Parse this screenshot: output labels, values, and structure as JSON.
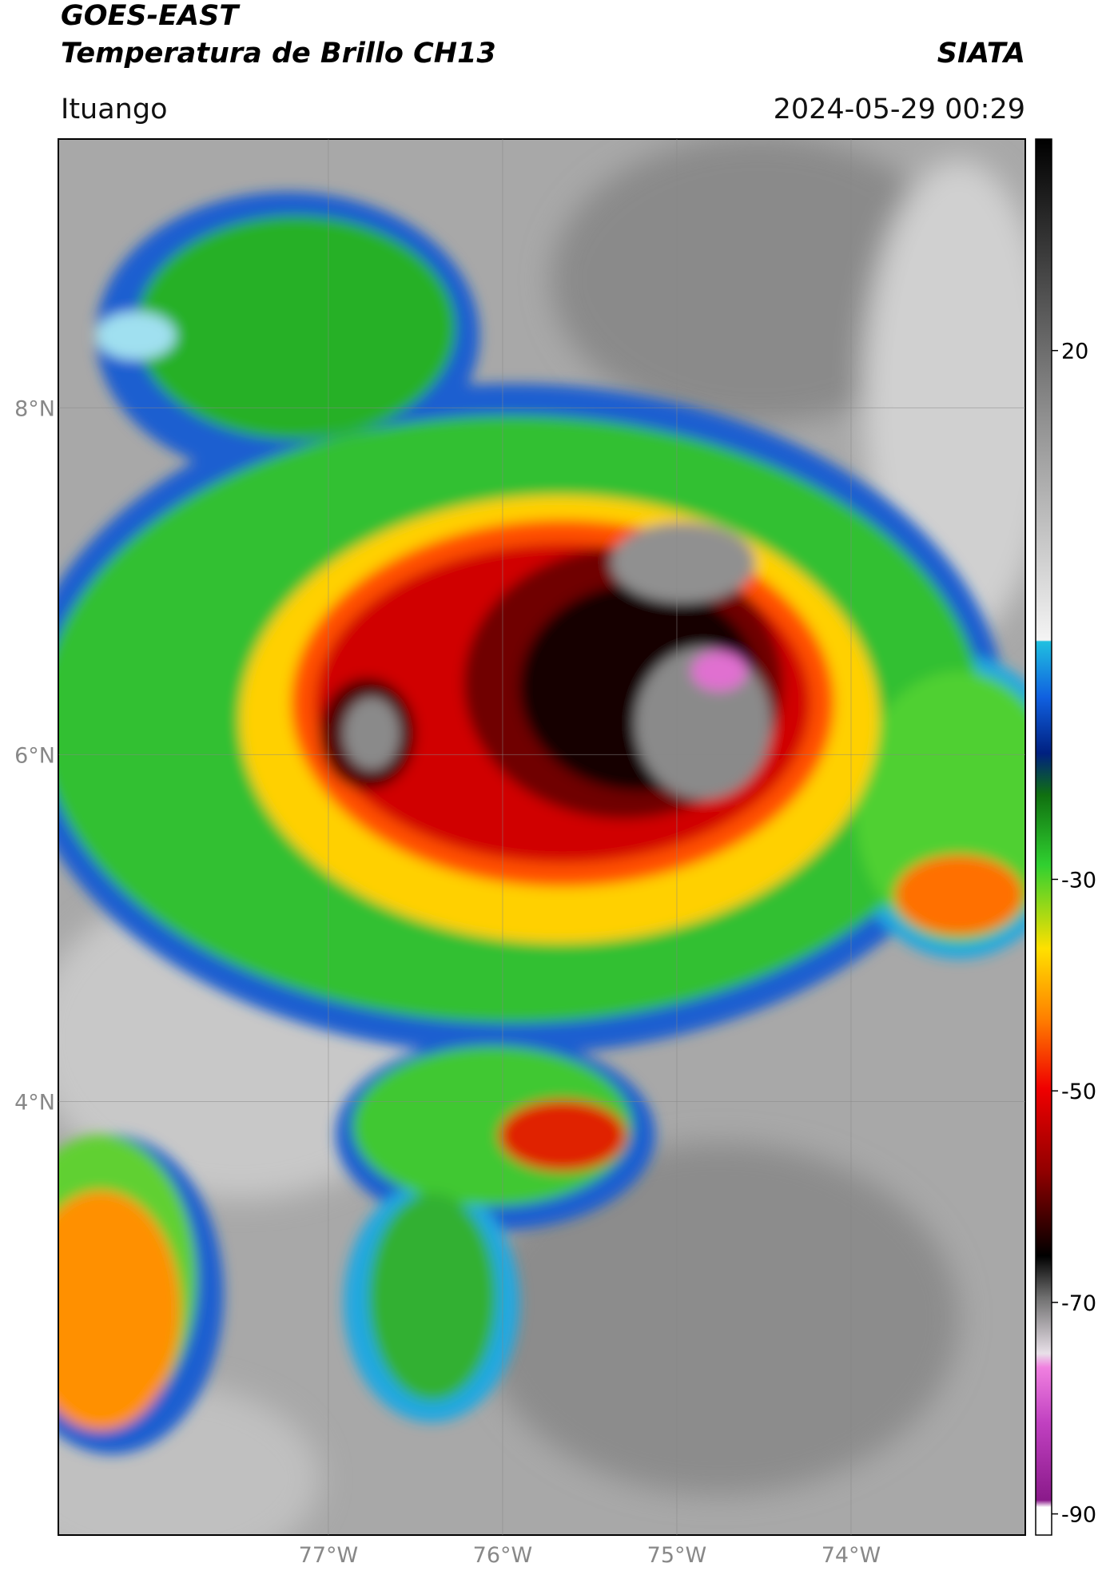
{
  "header": {
    "title": "GOES-EAST",
    "subtitle": "Temperatura de Brillo CH13",
    "source": "SIATA",
    "location": "Ituango",
    "timestamp": "2024-05-29 00:29"
  },
  "map": {
    "xlim": [
      -78.55,
      -73.0
    ],
    "ylim": [
      1.5,
      9.55
    ],
    "xticks": [
      {
        "value": -77,
        "label": "77°W"
      },
      {
        "value": -76,
        "label": "76°W"
      },
      {
        "value": -75,
        "label": "75°W"
      },
      {
        "value": -74,
        "label": "74°W"
      }
    ],
    "yticks": [
      {
        "value": 8,
        "label": "8°N"
      },
      {
        "value": 6,
        "label": "6°N"
      },
      {
        "value": 4,
        "label": "4°N"
      }
    ],
    "grid": true
  },
  "colorbar": {
    "lim": [
      -92,
      40
    ],
    "ticks": [
      20,
      -30,
      -50,
      -70,
      -90
    ]
  }
}
